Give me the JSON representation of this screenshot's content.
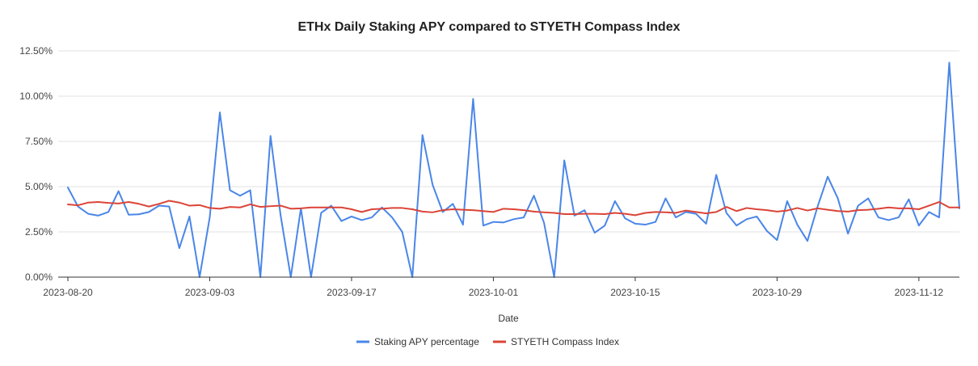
{
  "chart_data": {
    "type": "line",
    "title": "ETHx  Daily Staking APY compared to STYETH Compass Index",
    "xlabel": "Date",
    "ylabel": "",
    "ylim": [
      0,
      12.5
    ],
    "y_ticks": [
      "0.00%",
      "2.50%",
      "5.00%",
      "7.50%",
      "10.00%",
      "12.50%"
    ],
    "y_tick_values": [
      0,
      2.5,
      5,
      7.5,
      10,
      12.5
    ],
    "x_start": "2023-08-20",
    "x_tick_labels": [
      "2023-08-20",
      "2023-09-03",
      "2023-09-17",
      "2023-10-01",
      "2023-10-15",
      "2023-10-29",
      "2023-11-12"
    ],
    "x_tick_indices": [
      0,
      14,
      28,
      42,
      56,
      70,
      84
    ],
    "legend_position": "bottom",
    "series": [
      {
        "name": "Staking APY percentage",
        "color": "#4a86e8",
        "values": [
          4.95,
          3.9,
          3.5,
          3.4,
          3.6,
          4.75,
          3.45,
          3.47,
          3.6,
          3.95,
          3.9,
          1.6,
          3.35,
          0.0,
          3.3,
          9.1,
          4.8,
          4.5,
          4.8,
          0.0,
          7.8,
          3.4,
          0.0,
          3.8,
          0.0,
          3.55,
          3.95,
          3.1,
          3.35,
          3.15,
          3.3,
          3.85,
          3.3,
          2.5,
          0.0,
          7.85,
          5.1,
          3.6,
          4.05,
          2.9,
          9.85,
          2.85,
          3.05,
          3.02,
          3.2,
          3.3,
          4.5,
          3.0,
          0.0,
          6.45,
          3.4,
          3.7,
          2.45,
          2.85,
          4.2,
          3.25,
          2.95,
          2.9,
          3.05,
          4.35,
          3.3,
          3.6,
          3.5,
          2.95,
          5.65,
          3.55,
          2.85,
          3.2,
          3.35,
          2.55,
          2.05,
          4.2,
          2.9,
          2.0,
          3.9,
          5.55,
          4.35,
          2.4,
          3.95,
          4.35,
          3.3,
          3.15,
          3.3,
          4.3,
          2.85,
          3.6,
          3.3,
          11.85,
          3.8
        ]
      },
      {
        "name": "STYETH Compass Index",
        "color": "#db4437",
        "values": [
          4.02,
          3.97,
          4.12,
          4.15,
          4.1,
          4.07,
          4.15,
          4.05,
          3.9,
          4.05,
          4.22,
          4.12,
          3.95,
          3.98,
          3.82,
          3.78,
          3.88,
          3.85,
          4.02,
          3.88,
          3.92,
          3.95,
          3.78,
          3.8,
          3.85,
          3.85,
          3.85,
          3.85,
          3.75,
          3.6,
          3.75,
          3.78,
          3.82,
          3.82,
          3.75,
          3.62,
          3.58,
          3.7,
          3.75,
          3.72,
          3.7,
          3.65,
          3.6,
          3.78,
          3.75,
          3.7,
          3.62,
          3.58,
          3.55,
          3.48,
          3.48,
          3.5,
          3.5,
          3.48,
          3.55,
          3.5,
          3.42,
          3.55,
          3.6,
          3.58,
          3.55,
          3.68,
          3.6,
          3.52,
          3.6,
          3.88,
          3.65,
          3.82,
          3.75,
          3.7,
          3.62,
          3.68,
          3.82,
          3.68,
          3.8,
          3.72,
          3.65,
          3.62,
          3.7,
          3.72,
          3.78,
          3.85,
          3.8,
          3.8,
          3.75,
          3.95,
          4.15,
          3.85,
          3.85
        ]
      }
    ]
  }
}
